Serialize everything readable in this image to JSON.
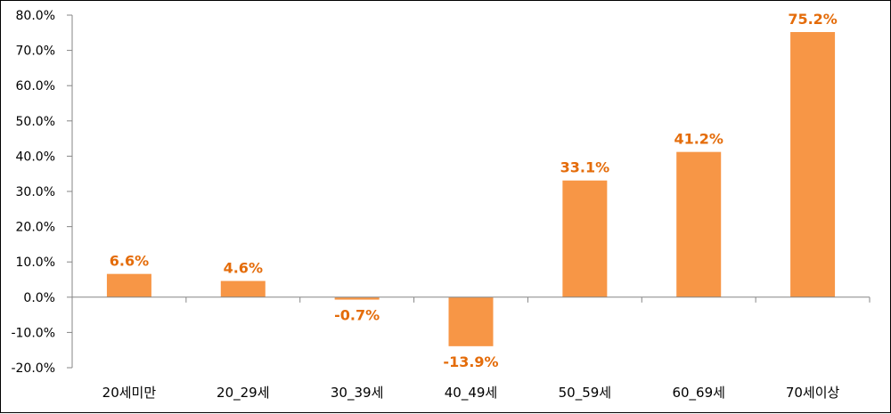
{
  "chart_data": {
    "type": "bar",
    "categories": [
      "20세미만",
      "20_29세",
      "30_39세",
      "40_49세",
      "50_59세",
      "60_69세",
      "70세이상"
    ],
    "values": [
      6.6,
      4.6,
      -0.7,
      -13.9,
      33.1,
      41.2,
      75.2
    ],
    "data_labels": [
      "6.6%",
      "4.6%",
      "-0.7%",
      "-13.9%",
      "33.1%",
      "41.2%",
      "75.2%"
    ],
    "ylim": [
      -20,
      80
    ],
    "yticks": [
      80,
      70,
      60,
      50,
      40,
      30,
      20,
      10,
      0,
      -10,
      -20
    ],
    "ytick_labels": [
      "80.0%",
      "70.0%",
      "60.0%",
      "50.0%",
      "40.0%",
      "30.0%",
      "20.0%",
      "10.0%",
      "0.0%",
      "-10.0%",
      "-20.0%"
    ],
    "grid": false,
    "legend": "none",
    "bar_color": "#f79646",
    "label_color": "#e46c0a"
  }
}
